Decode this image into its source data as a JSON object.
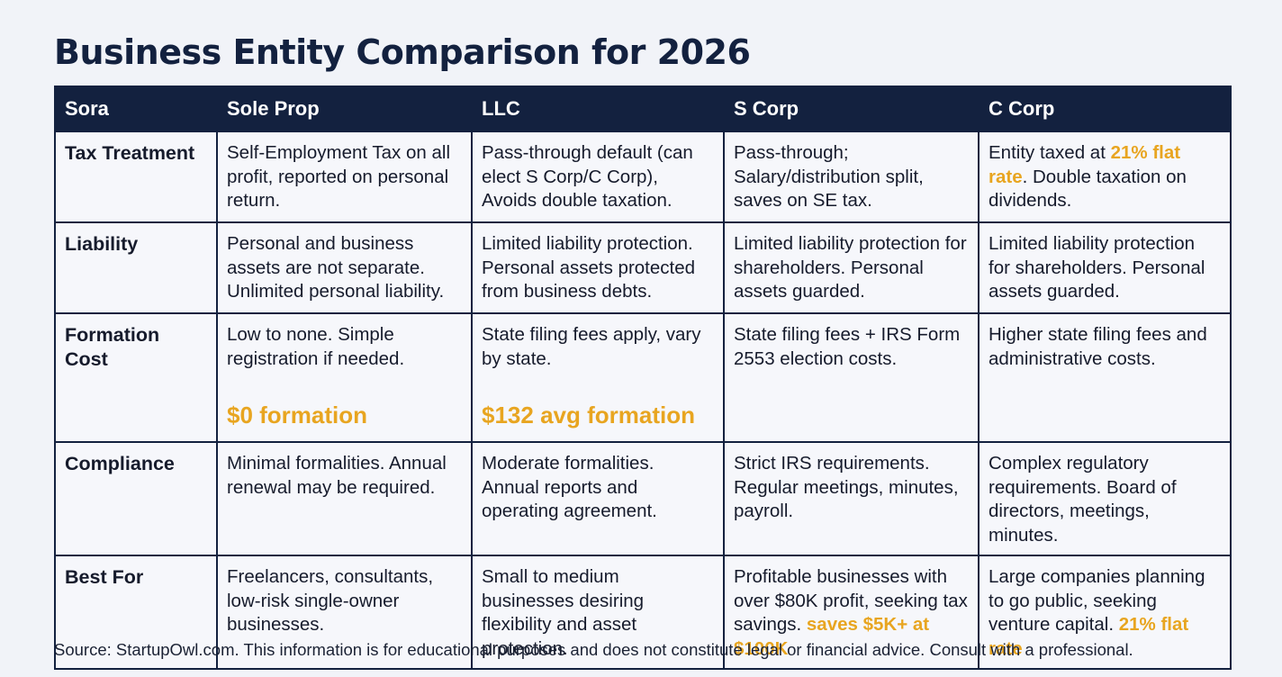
{
  "title": "Business Entity Comparison for 2026",
  "table": {
    "headers": [
      "Sora",
      "Sole Prop",
      "LLC",
      "S Corp",
      "C Corp"
    ],
    "rows": [
      {
        "label": "Tax Treatment",
        "cells": [
          {
            "text": "Self-Employment Tax on all profit, reported on personal return."
          },
          {
            "text": "Pass-through default (can elect S Corp/C Corp), Avoids double taxation."
          },
          {
            "text": "Pass-through; Salary/distribution split, saves on SE tax."
          },
          {
            "before": "Entity taxed at ",
            "highlight": "21% flat rate",
            "after": ". Double taxation on dividends."
          }
        ]
      },
      {
        "label": "Liability",
        "cells": [
          {
            "text": "Personal and business assets are not separate. Unlimited personal liability."
          },
          {
            "text": "Limited liability protection. Personal assets protected from business debts."
          },
          {
            "text": "Limited liability protection for shareholders. Personal assets guarded."
          },
          {
            "text": "Limited liability protection for shareholders. Personal assets guarded."
          }
        ]
      },
      {
        "label": "Formation Cost",
        "cells": [
          {
            "text": "Low to none. Simple registration if needed.",
            "big": "$0 formation"
          },
          {
            "text": "State filing fees apply, vary by state.",
            "big": "$132 avg formation"
          },
          {
            "text": "State filing fees + IRS Form 2553 election costs."
          },
          {
            "text": "Higher state filing fees and administrative costs."
          }
        ]
      },
      {
        "label": "Compliance",
        "cells": [
          {
            "text": "Minimal formalities. Annual renewal may be required."
          },
          {
            "text": "Moderate formalities. Annual reports and operating agreement."
          },
          {
            "text": "Strict IRS requirements. Regular meetings, minutes, payroll."
          },
          {
            "text": "Complex regulatory requirements. Board of directors, meetings, minutes."
          }
        ]
      },
      {
        "label": "Best For",
        "cells": [
          {
            "text": "Freelancers, consultants, low-risk single-owner businesses."
          },
          {
            "text": "Small to medium businesses desiring flexibility and asset protection."
          },
          {
            "before": "Profitable businesses with over $80K profit, seeking tax savings. ",
            "highlight": "saves $5K+ at $100K"
          },
          {
            "before": "Large companies planning to go public, seeking venture capital. ",
            "highlight": "21% flat rate"
          }
        ]
      }
    ]
  },
  "source": "Source: StartupOwl.com. This information is for educational purposes and does not constitute legal or financial advice. Consult with a professional.",
  "colors": {
    "header_bg": "#13213f",
    "accent": "#e8a520",
    "background": "#f1f3f8"
  }
}
